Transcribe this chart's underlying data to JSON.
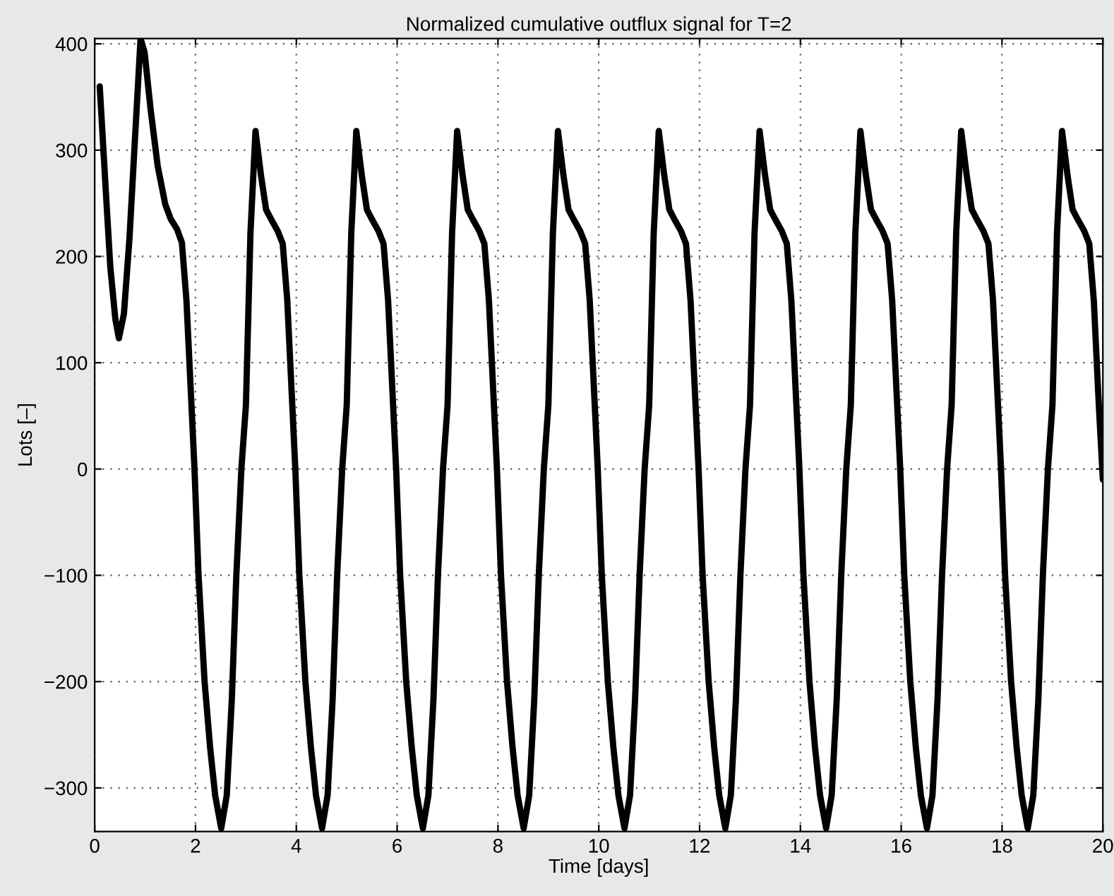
{
  "chart_data": {
    "type": "line",
    "title": "Normalized cumulative outflux signal for T=2",
    "xlabel": "Time [days]",
    "ylabel": "Lots [–]",
    "xlim": [
      0,
      20
    ],
    "ylim": [
      -341,
      405
    ],
    "xticks": [
      0,
      2,
      4,
      6,
      8,
      10,
      12,
      14,
      16,
      18,
      20
    ],
    "yticks": [
      {
        "value": -300,
        "label": "−300"
      },
      {
        "value": -200,
        "label": "−200"
      },
      {
        "value": -100,
        "label": "−100"
      },
      0,
      100,
      200,
      300,
      400
    ],
    "grid": true,
    "line_style": "solid",
    "marker": "none",
    "series": [
      {
        "color": "#000000",
        "x": [
          0.1,
          0.22,
          0.31,
          0.41,
          0.48,
          0.58,
          0.69,
          0.81,
          0.91,
          0.99,
          1.11,
          1.25,
          1.4,
          1.51,
          1.63,
          1.73,
          1.82,
          1.92,
          1.98,
          2.06,
          2.18,
          2.29,
          2.39,
          2.51,
          2.62,
          2.72,
          2.81,
          2.91,
          3.0,
          3.09,
          3.19,
          3.3,
          3.4,
          3.5,
          3.63,
          3.73,
          3.82,
          3.92,
          3.98,
          4.06,
          4.18,
          4.29,
          4.39,
          4.51,
          4.62,
          4.72,
          4.81,
          4.91,
          5.0,
          5.09,
          5.19,
          5.3,
          5.4,
          5.5,
          5.63,
          5.73,
          5.82,
          5.92,
          5.98,
          6.06,
          6.18,
          6.29,
          6.39,
          6.51,
          6.62,
          6.72,
          6.81,
          6.91,
          7.0,
          7.09,
          7.19,
          7.3,
          7.4,
          7.5,
          7.63,
          7.73,
          7.82,
          7.92,
          7.98,
          8.06,
          8.18,
          8.29,
          8.39,
          8.51,
          8.62,
          8.72,
          8.81,
          8.91,
          9.0,
          9.09,
          9.19,
          9.3,
          9.4,
          9.5,
          9.63,
          9.73,
          9.82,
          9.92,
          9.98,
          10.06,
          10.18,
          10.29,
          10.39,
          10.51,
          10.62,
          10.72,
          10.81,
          10.91,
          11.0,
          11.09,
          11.19,
          11.3,
          11.4,
          11.5,
          11.63,
          11.73,
          11.82,
          11.92,
          11.98,
          12.06,
          12.18,
          12.29,
          12.39,
          12.51,
          12.62,
          12.72,
          12.81,
          12.91,
          13.0,
          13.09,
          13.19,
          13.3,
          13.4,
          13.5,
          13.63,
          13.73,
          13.82,
          13.92,
          13.98,
          14.06,
          14.18,
          14.29,
          14.39,
          14.51,
          14.62,
          14.72,
          14.81,
          14.91,
          15.0,
          15.09,
          15.19,
          15.3,
          15.4,
          15.5,
          15.63,
          15.73,
          15.82,
          15.92,
          15.98,
          16.06,
          16.18,
          16.29,
          16.39,
          16.51,
          16.62,
          16.72,
          16.81,
          16.91,
          17.0,
          17.09,
          17.19,
          17.3,
          17.4,
          17.5,
          17.63,
          17.73,
          17.82,
          17.92,
          17.98,
          18.06,
          18.18,
          18.29,
          18.39,
          18.51,
          18.62,
          18.72,
          18.81,
          18.91,
          19.0,
          19.09,
          19.19,
          19.3,
          19.4,
          19.5,
          19.63,
          19.73,
          19.82,
          19.92,
          20.0
        ],
        "values": [
          360,
          262,
          190,
          141,
          123,
          146,
          217,
          320,
          405,
          392,
          338,
          285,
          249,
          235,
          226,
          213,
          159,
          60,
          0,
          -100,
          -200,
          -262,
          -307,
          -338,
          -307,
          -217,
          -100,
          0,
          60,
          222,
          318,
          276,
          244,
          235,
          224,
          212,
          159,
          60,
          0,
          -100,
          -200,
          -262,
          -307,
          -338,
          -307,
          -217,
          -100,
          0,
          60,
          222,
          318,
          276,
          244,
          235,
          224,
          212,
          159,
          60,
          0,
          -100,
          -200,
          -262,
          -307,
          -338,
          -307,
          -217,
          -100,
          0,
          60,
          222,
          318,
          276,
          244,
          235,
          224,
          212,
          159,
          60,
          0,
          -100,
          -200,
          -262,
          -307,
          -338,
          -307,
          -217,
          -100,
          0,
          60,
          222,
          318,
          276,
          244,
          235,
          224,
          212,
          159,
          60,
          0,
          -100,
          -200,
          -262,
          -307,
          -338,
          -307,
          -217,
          -100,
          0,
          60,
          222,
          318,
          276,
          244,
          235,
          224,
          212,
          159,
          60,
          0,
          -100,
          -200,
          -262,
          -307,
          -338,
          -307,
          -217,
          -100,
          0,
          60,
          222,
          318,
          276,
          244,
          235,
          224,
          212,
          159,
          60,
          0,
          -100,
          -200,
          -262,
          -307,
          -338,
          -307,
          -217,
          -100,
          0,
          60,
          222,
          318,
          276,
          244,
          235,
          224,
          212,
          159,
          60,
          0,
          -100,
          -200,
          -262,
          -307,
          -338,
          -307,
          -217,
          -100,
          0,
          60,
          222,
          318,
          276,
          244,
          235,
          224,
          212,
          159,
          60,
          0,
          -100,
          -200,
          -262,
          -307,
          -338,
          -307,
          -217,
          -100,
          0,
          60,
          222,
          318,
          276,
          244,
          235,
          224,
          212,
          159,
          60,
          -10
        ]
      }
    ]
  }
}
